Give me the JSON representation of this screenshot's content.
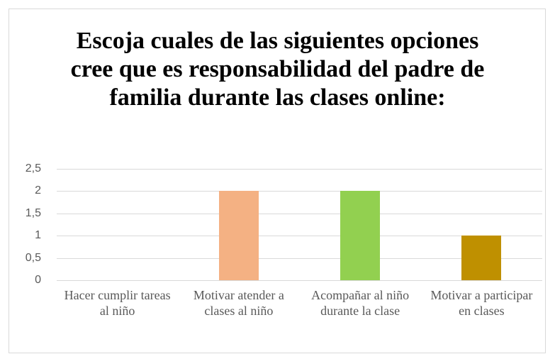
{
  "chart_data": {
    "type": "bar",
    "title": "Escoja cuales de las siguientes opciones cree que es responsabilidad del padre de familia durante las clases online:",
    "categories": [
      "Hacer cumplir tareas al niño",
      "Motivar atender a clases al niño",
      "Acompañar al niño durante la clase",
      "Motivar a participar en clases"
    ],
    "values": [
      0,
      2,
      2,
      1
    ],
    "colors": [
      "#5b9bd5",
      "#f4b183",
      "#92d050",
      "#bf9000"
    ],
    "ylim": [
      0,
      2.5
    ],
    "yticks": [
      0,
      {
        "value": 0.5,
        "label": "0,5"
      },
      1,
      {
        "value": 1.5,
        "label": "1,5"
      },
      2,
      {
        "value": 2.5,
        "label": "2,5"
      }
    ],
    "grid": true
  }
}
